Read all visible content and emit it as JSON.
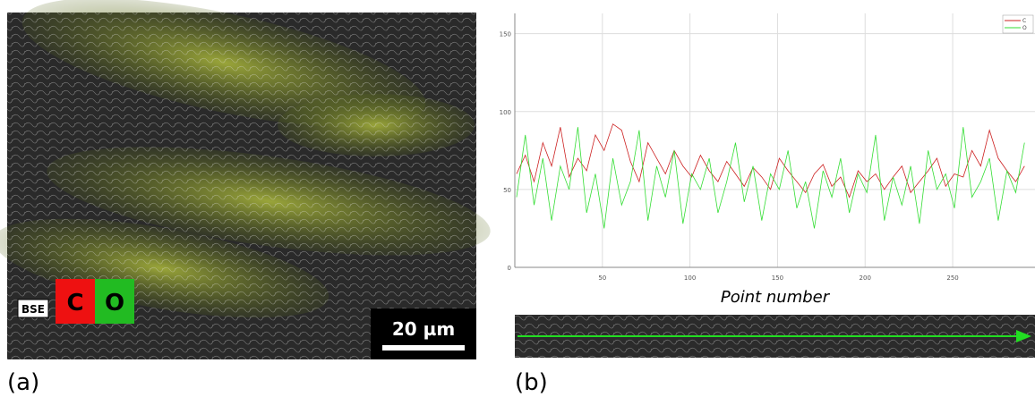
{
  "figure": {
    "label_a": "(a)",
    "label_b": "(b)",
    "bse": "BSE",
    "badges_a": [
      "C",
      "O"
    ],
    "scale_bar": "20 µm",
    "badges_b": [
      "C",
      "O"
    ]
  },
  "chart_data": {
    "type": "line",
    "x_label": "Point number",
    "x": [
      1,
      6,
      11,
      16,
      21,
      26,
      31,
      36,
      41,
      46,
      51,
      56,
      61,
      66,
      71,
      76,
      81,
      86,
      91,
      96,
      101,
      106,
      111,
      116,
      121,
      126,
      131,
      136,
      141,
      146,
      151,
      156,
      161,
      166,
      171,
      176,
      181,
      186,
      191,
      196,
      201,
      206,
      211,
      216,
      221,
      226,
      231,
      236,
      241,
      246,
      251,
      256,
      261,
      266,
      271,
      276,
      281,
      286,
      291
    ],
    "series": [
      {
        "name": "C",
        "color": "#cc2020",
        "values": [
          60,
          72,
          55,
          80,
          65,
          90,
          58,
          70,
          62,
          85,
          75,
          92,
          88,
          68,
          55,
          80,
          70,
          60,
          75,
          65,
          58,
          72,
          62,
          55,
          68,
          60,
          52,
          64,
          58,
          50,
          70,
          62,
          55,
          48,
          60,
          66,
          52,
          58,
          45,
          62,
          55,
          60,
          50,
          58,
          65,
          48,
          55,
          62,
          70,
          52,
          60,
          58,
          75,
          65,
          88,
          70,
          62,
          55,
          65
        ]
      },
      {
        "name": "O",
        "color": "#33dd33",
        "values": [
          45,
          85,
          40,
          70,
          30,
          65,
          50,
          90,
          35,
          60,
          25,
          70,
          40,
          55,
          88,
          30,
          65,
          45,
          75,
          28,
          60,
          50,
          70,
          35,
          55,
          80,
          42,
          65,
          30,
          60,
          50,
          75,
          38,
          55,
          25,
          62,
          45,
          70,
          35,
          60,
          48,
          85,
          30,
          58,
          40,
          65,
          28,
          75,
          50,
          60,
          38,
          90,
          45,
          55,
          70,
          30,
          62,
          48,
          80
        ]
      }
    ],
    "xlim": [
      0,
      297
    ],
    "ylim": [
      0,
      163
    ],
    "xticks": [
      50,
      100,
      150,
      200,
      250
    ],
    "yticks": [
      0,
      50,
      100,
      150
    ],
    "grid": true,
    "legend": "top-right"
  }
}
